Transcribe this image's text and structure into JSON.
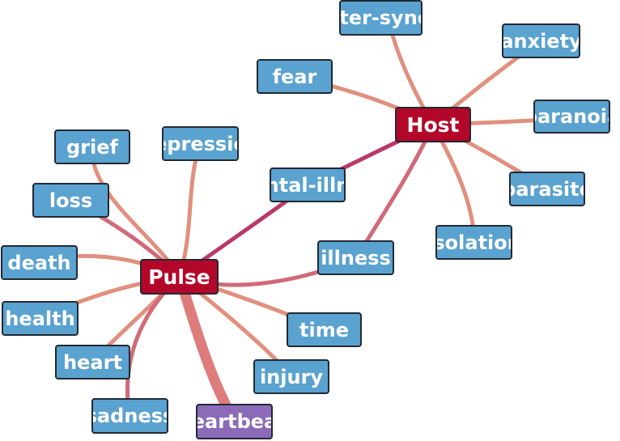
{
  "graph": {
    "colors": {
      "leaf_fill": "#5aa2cf",
      "hub_fill": "#b3072a",
      "highlight_fill": "#8b6ab8",
      "border": "#222a33",
      "edge_light": "#e0907e",
      "edge_mid": "#d06a78",
      "edge_strong": "#b93a68",
      "edge_heavy": "#de7c7c"
    },
    "hubs": {
      "pulse": "Pulse",
      "host": "Host"
    },
    "nodes": {
      "alter_syndrome": "lter-sync",
      "anxiety": "anxiety",
      "fear": "fear",
      "paranoia": "paranoia",
      "parasite": "parasite",
      "isolation": "isolation",
      "mental_illness": "ntal-illn",
      "illness": "illness",
      "grief": "grief",
      "depression": "epressio",
      "loss": "loss",
      "death": "death",
      "health": "health",
      "heart": "heart",
      "sadness": "sadness",
      "heartbeat": "eartbea",
      "injury": "injury",
      "time": "time"
    },
    "edges": [
      {
        "from": "host",
        "to": "alter_syndrome",
        "weight": 1
      },
      {
        "from": "host",
        "to": "anxiety",
        "weight": 1
      },
      {
        "from": "host",
        "to": "fear",
        "weight": 1
      },
      {
        "from": "host",
        "to": "paranoia",
        "weight": 1
      },
      {
        "from": "host",
        "to": "parasite",
        "weight": 1
      },
      {
        "from": "host",
        "to": "isolation",
        "weight": 1
      },
      {
        "from": "host",
        "to": "mental_illness",
        "weight": 2
      },
      {
        "from": "host",
        "to": "illness",
        "weight": 2
      },
      {
        "from": "pulse",
        "to": "mental_illness",
        "weight": 2
      },
      {
        "from": "pulse",
        "to": "illness",
        "weight": 2
      },
      {
        "from": "pulse",
        "to": "grief",
        "weight": 1
      },
      {
        "from": "pulse",
        "to": "depression",
        "weight": 1
      },
      {
        "from": "pulse",
        "to": "loss",
        "weight": 2
      },
      {
        "from": "pulse",
        "to": "death",
        "weight": 1
      },
      {
        "from": "pulse",
        "to": "health",
        "weight": 1
      },
      {
        "from": "pulse",
        "to": "heart",
        "weight": 1
      },
      {
        "from": "pulse",
        "to": "sadness",
        "weight": 2
      },
      {
        "from": "pulse",
        "to": "heartbeat",
        "weight": 3
      },
      {
        "from": "pulse",
        "to": "injury",
        "weight": 1
      },
      {
        "from": "pulse",
        "to": "time",
        "weight": 1
      }
    ]
  }
}
